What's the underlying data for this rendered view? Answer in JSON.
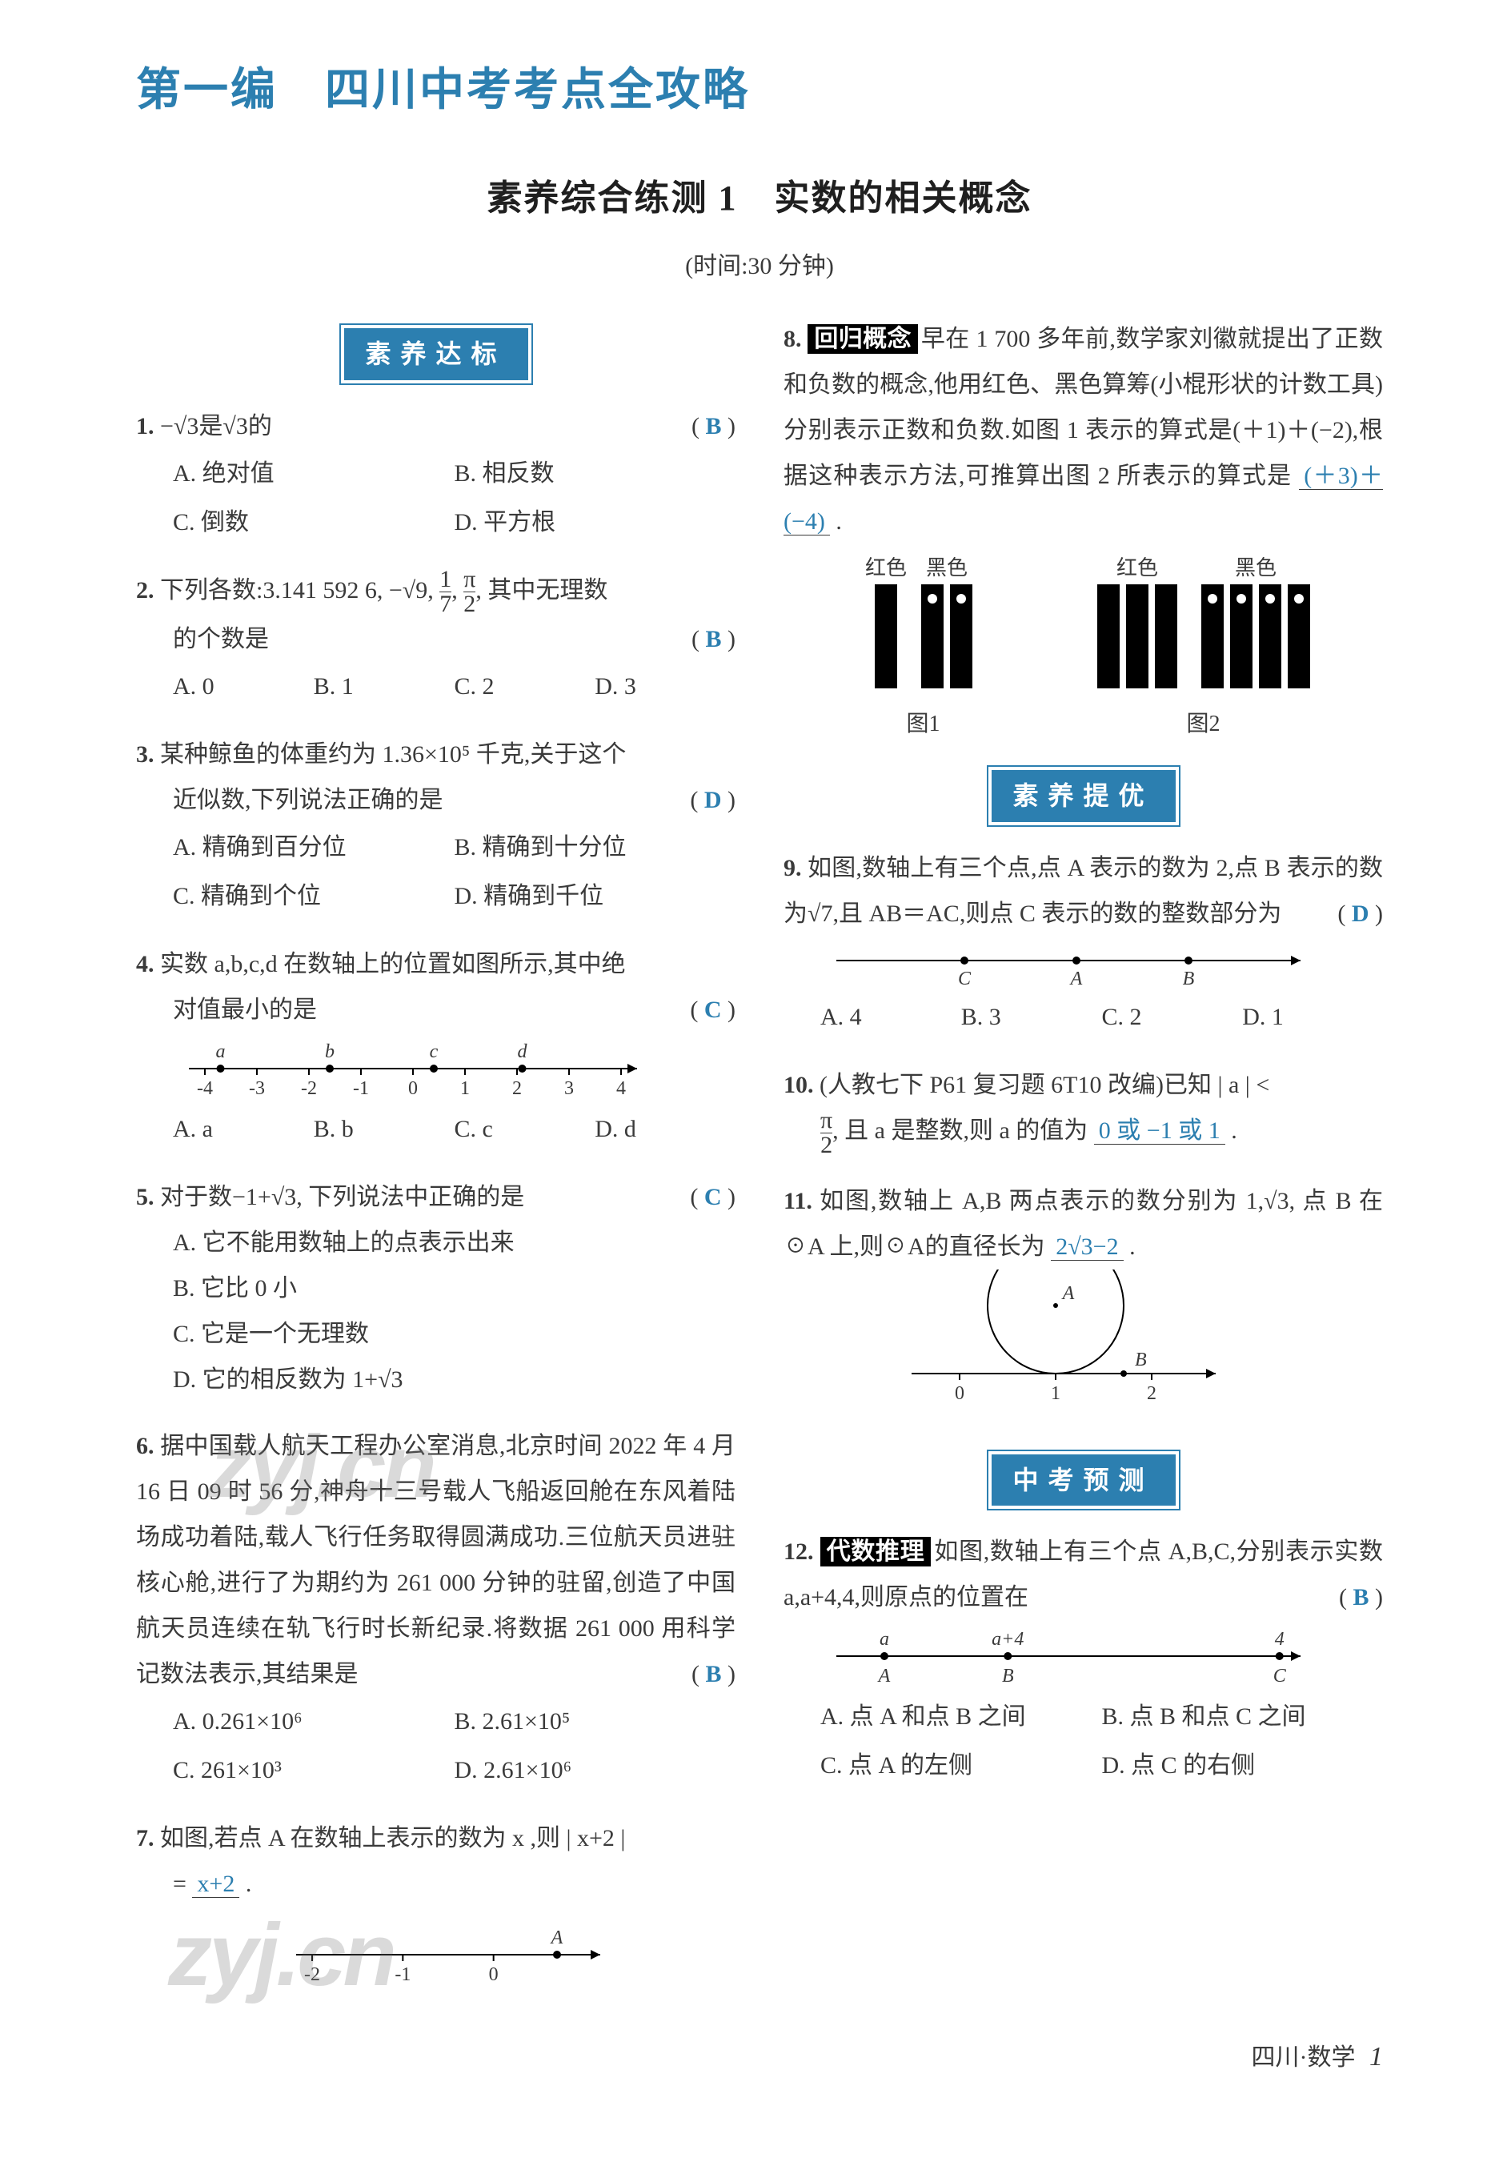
{
  "header": {
    "part_label": "第一编　四川中考考点全攻略",
    "section_title": "素养综合练测 1　实数的相关概念",
    "time_note": "(时间:30 分钟)"
  },
  "pills": {
    "standard": "素养达标",
    "advance": "素养提优",
    "forecast": "中考预测"
  },
  "q1": {
    "num": "1.",
    "stem": "−√3是√3的",
    "answer": "B",
    "opts": {
      "a": "A. 绝对值",
      "b": "B. 相反数",
      "c": "C. 倒数",
      "d": "D. 平方根"
    }
  },
  "q2": {
    "num": "2.",
    "stem_a": "下列各数:3.141 592 6, −√9, ",
    "stem_frac1_top": "1",
    "stem_frac1_bot": "7",
    "stem_mid": ", ",
    "stem_frac2_top": "π",
    "stem_frac2_bot": "2",
    "stem_b": ", 其中无理数",
    "stem2": "的个数是",
    "answer": "B",
    "opts": {
      "a": "A. 0",
      "b": "B. 1",
      "c": "C. 2",
      "d": "D. 3"
    }
  },
  "q3": {
    "num": "3.",
    "stem1": "某种鲸鱼的体重约为 1.36×10⁵ 千克,关于这个",
    "stem2": "近似数,下列说法正确的是",
    "answer": "D",
    "opts": {
      "a": "A. 精确到百分位",
      "b": "B. 精确到十分位",
      "c": "C. 精确到个位",
      "d": "D. 精确到千位"
    }
  },
  "q4": {
    "num": "4.",
    "stem1": "实数 a,b,c,d 在数轴上的位置如图所示,其中绝",
    "stem2": "对值最小的是",
    "answer": "C",
    "axis": {
      "ticks": [
        -4,
        -3,
        -2,
        -1,
        0,
        1,
        2,
        3,
        4
      ],
      "points": [
        {
          "label": "a",
          "x": -3.7
        },
        {
          "label": "b",
          "x": -1.6
        },
        {
          "label": "c",
          "x": 0.4
        },
        {
          "label": "d",
          "x": 2.1
        }
      ]
    },
    "opts": {
      "a": "A. a",
      "b": "B. b",
      "c": "C. c",
      "d": "D. d"
    }
  },
  "q5": {
    "num": "5.",
    "stem": "对于数−1+√3, 下列说法中正确的是",
    "answer": "C",
    "opts": {
      "a": "A. 它不能用数轴上的点表示出来",
      "b": "B. 它比 0 小",
      "c": "C. 它是一个无理数",
      "d": "D. 它的相反数为 1+√3"
    }
  },
  "q6": {
    "num": "6.",
    "body": "据中国载人航天工程办公室消息,北京时间 2022 年 4 月 16 日 09 时 56 分,神舟十三号载人飞船返回舱在东风着陆场成功着陆,载人飞行任务取得圆满成功.三位航天员进驻核心舱,进行了为期约为 261 000 分钟的驻留,创造了中国航天员连续在轨飞行时长新纪录.将数据 261 000 用科学记数法表示,其结果是",
    "answer": "B",
    "opts": {
      "a": "A. 0.261×10⁶",
      "b": "B. 2.61×10⁵",
      "c": "C. 261×10³",
      "d": "D. 2.61×10⁶"
    }
  },
  "q7": {
    "num": "7.",
    "stem": "如图,若点 A 在数轴上表示的数为 x ,则 | x+2 |",
    "eq_prefix": "= ",
    "answer_text": "x+2",
    "eq_suffix": " .",
    "axis": {
      "ticks": [
        -2,
        -1,
        0
      ],
      "A_x": 0.7
    }
  },
  "q8": {
    "num": "8.",
    "tag": "回归概念",
    "body": "早在 1 700 多年前,数学家刘徽就提出了正数和负数的概念,他用红色、黑色算筹(小棍形状的计数工具)分别表示正数和负数.如图 1 表示的算式是(＋1)＋(−2),根据这种表示方法,可推算出图 2 所表示的算式是 ",
    "answer_text": "(＋3)＋(−4)",
    "suffix": " .",
    "labels": {
      "red": "红色",
      "black": "黑色",
      "fig1": "图1",
      "fig2": "图2"
    },
    "rods": {
      "fig1": {
        "red": 1,
        "black": 2
      },
      "fig2": {
        "red": 3,
        "black": 4
      },
      "rod_color": "#000000",
      "mark_color": "#ffffff"
    }
  },
  "q9": {
    "num": "9.",
    "stem": "如图,数轴上有三个点,点 A 表示的数为 2,点 B 表示的数为√7,且 AB＝AC,则点 C 表示的数的整数部分为",
    "answer": "D",
    "axis": {
      "points": [
        {
          "label": "C",
          "x": 0
        },
        {
          "label": "A",
          "x": 1
        },
        {
          "label": "B",
          "x": 2
        }
      ]
    },
    "opts": {
      "a": "A. 4",
      "b": "B. 3",
      "c": "C. 2",
      "d": "D. 1"
    }
  },
  "q10": {
    "num": "10.",
    "stem_a": "(人教七下 P61 复习题 6T10 改编)已知 | a | <",
    "frac_top": "π",
    "frac_bot": "2",
    "stem_b": ", 且 a 是整数,则 a 的值为 ",
    "answer_text": "0 或 −1 或 1",
    "suffix": " ."
  },
  "q11": {
    "num": "11.",
    "stem": "如图,数轴上 A,B 两点表示的数分别为 1,√3, 点 B 在☉A 上,则☉A的直径长为 ",
    "answer_text": "2√3−2",
    "suffix": " .",
    "axis": {
      "zero": 0,
      "one": 1,
      "two": 2,
      "A": "A",
      "B": "B"
    }
  },
  "q12": {
    "num": "12.",
    "tag": "代数推理",
    "stem": "如图,数轴上有三个点 A,B,C,分别表示实数 a,a+4,4,则原点的位置在",
    "answer": "B",
    "axis": {
      "pts": [
        {
          "top": "a",
          "bot": "A",
          "x": 0
        },
        {
          "top": "a+4",
          "bot": "B",
          "x": 1
        },
        {
          "top": "4",
          "bot": "C",
          "x": 3.2
        }
      ]
    },
    "opts": {
      "a": "A. 点 A 和点 B 之间",
      "b": "B. 点 B 和点 C 之间",
      "c": "C. 点 A 的左侧",
      "d": "D. 点 C 的右侧"
    }
  },
  "footer": {
    "text": "四川·数学",
    "page": "1"
  },
  "watermark": "zyj.cn"
}
